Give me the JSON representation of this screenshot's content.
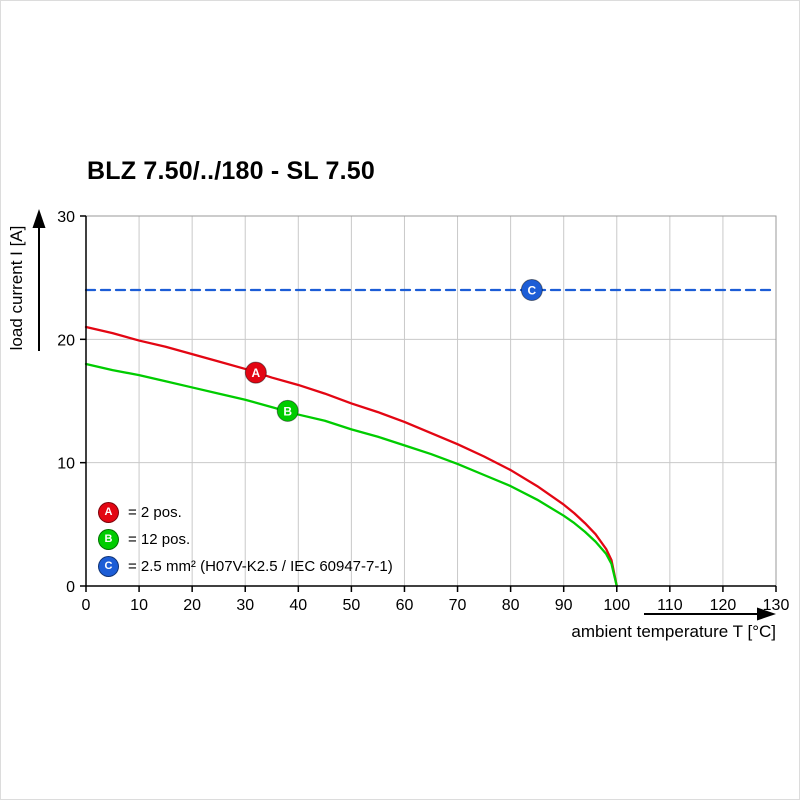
{
  "chart_data": {
    "type": "line",
    "title": "BLZ 7.50/../180 - SL 7.50",
    "xlabel": "ambient temperature T [°C]",
    "ylabel": "load current I [A]",
    "xlim": [
      0,
      130
    ],
    "ylim": [
      0,
      30
    ],
    "x_ticks": [
      0,
      10,
      20,
      30,
      40,
      50,
      60,
      70,
      80,
      90,
      100,
      110,
      120,
      130
    ],
    "y_ticks": [
      0,
      10,
      20,
      30
    ],
    "grid": true,
    "grid_color": "#c9c9c9",
    "border_color": "#9a9a9a",
    "legend_position": "inside bottom-left",
    "series": [
      {
        "name": "A",
        "legend_label": "= 2 pos.",
        "color": "#e30613",
        "line_style": "solid",
        "marker": {
          "x": 32,
          "y": 17.3
        },
        "points": [
          [
            0,
            21.0
          ],
          [
            5,
            20.5
          ],
          [
            10,
            19.9
          ],
          [
            15,
            19.4
          ],
          [
            20,
            18.8
          ],
          [
            25,
            18.2
          ],
          [
            30,
            17.6
          ],
          [
            35,
            16.9
          ],
          [
            40,
            16.3
          ],
          [
            45,
            15.6
          ],
          [
            50,
            14.8
          ],
          [
            55,
            14.1
          ],
          [
            60,
            13.3
          ],
          [
            65,
            12.4
          ],
          [
            70,
            11.5
          ],
          [
            75,
            10.5
          ],
          [
            80,
            9.4
          ],
          [
            85,
            8.1
          ],
          [
            90,
            6.6
          ],
          [
            92,
            5.9
          ],
          [
            94,
            5.1
          ],
          [
            96,
            4.2
          ],
          [
            98,
            3.0
          ],
          [
            99,
            2.1
          ],
          [
            100,
            0
          ]
        ]
      },
      {
        "name": "B",
        "legend_label": "= 12 pos.",
        "color": "#00cc00",
        "line_style": "solid",
        "marker": {
          "x": 38,
          "y": 14.2
        },
        "points": [
          [
            0,
            18.0
          ],
          [
            5,
            17.5
          ],
          [
            10,
            17.1
          ],
          [
            15,
            16.6
          ],
          [
            20,
            16.1
          ],
          [
            25,
            15.6
          ],
          [
            30,
            15.1
          ],
          [
            35,
            14.5
          ],
          [
            40,
            13.9
          ],
          [
            45,
            13.4
          ],
          [
            50,
            12.7
          ],
          [
            55,
            12.1
          ],
          [
            60,
            11.4
          ],
          [
            65,
            10.7
          ],
          [
            70,
            9.9
          ],
          [
            75,
            9.0
          ],
          [
            80,
            8.1
          ],
          [
            85,
            7.0
          ],
          [
            90,
            5.7
          ],
          [
            92,
            5.1
          ],
          [
            94,
            4.4
          ],
          [
            96,
            3.6
          ],
          [
            98,
            2.6
          ],
          [
            99,
            1.8
          ],
          [
            100,
            0
          ]
        ]
      },
      {
        "name": "C",
        "legend_label": "= 2.5 mm² (H07V-K2.5 / IEC 60947-7-1)",
        "color": "#1c5dd6",
        "line_style": "dashed",
        "marker": {
          "x": 84,
          "y": 24
        },
        "points": [
          [
            0,
            24
          ],
          [
            130,
            24
          ]
        ]
      }
    ]
  }
}
